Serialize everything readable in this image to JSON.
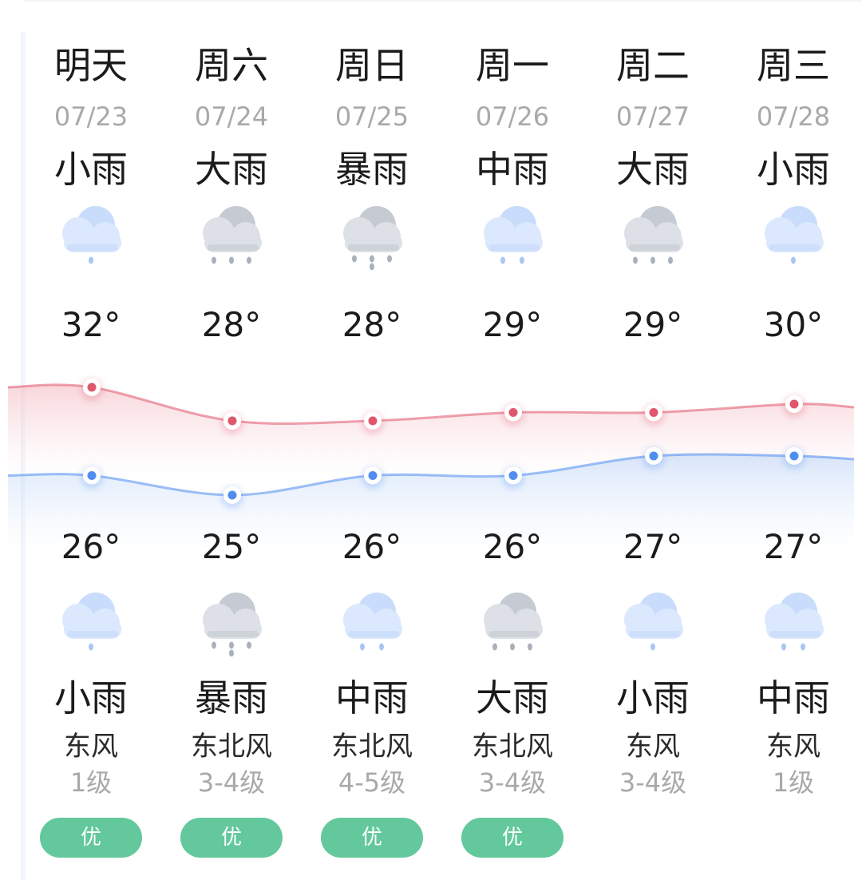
{
  "forecast": {
    "days": [
      {
        "name": "明天",
        "date": "07/23",
        "day_condition": "小雨",
        "day_icon": "cloud-light-rain-icon",
        "high": "32°",
        "low": "26°",
        "night_condition": "小雨",
        "night_icon": "cloud-light-rain-icon",
        "wind_dir": "东风",
        "wind_level": "1级",
        "aqi": "优"
      },
      {
        "name": "周六",
        "date": "07/24",
        "day_condition": "大雨",
        "day_icon": "cloud-heavy-rain-icon",
        "high": "28°",
        "low": "25°",
        "night_condition": "暴雨",
        "night_icon": "cloud-rainstorm-icon",
        "wind_dir": "东北风",
        "wind_level": "3-4级",
        "aqi": "优"
      },
      {
        "name": "周日",
        "date": "07/25",
        "day_condition": "暴雨",
        "day_icon": "cloud-rainstorm-icon",
        "high": "28°",
        "low": "26°",
        "night_condition": "中雨",
        "night_icon": "cloud-moderate-rain-icon",
        "wind_dir": "东北风",
        "wind_level": "4-5级",
        "aqi": "优"
      },
      {
        "name": "周一",
        "date": "07/26",
        "day_condition": "中雨",
        "day_icon": "cloud-moderate-rain-icon",
        "high": "29°",
        "low": "26°",
        "night_condition": "大雨",
        "night_icon": "cloud-heavy-rain-icon",
        "wind_dir": "东北风",
        "wind_level": "3-4级",
        "aqi": "优"
      },
      {
        "name": "周二",
        "date": "07/27",
        "day_condition": "大雨",
        "day_icon": "cloud-heavy-rain-icon",
        "high": "29°",
        "low": "27°",
        "night_condition": "小雨",
        "night_icon": "cloud-light-rain-icon",
        "wind_dir": "东风",
        "wind_level": "3-4级",
        "aqi": ""
      },
      {
        "name": "周三",
        "date": "07/28",
        "day_condition": "小雨",
        "day_icon": "cloud-light-rain-icon",
        "high": "30°",
        "low": "27°",
        "night_condition": "中雨",
        "night_icon": "cloud-moderate-rain-icon",
        "wind_dir": "东风",
        "wind_level": "1级",
        "aqi": ""
      }
    ]
  },
  "chart_data": {
    "type": "line",
    "categories": [
      "07/23",
      "07/24",
      "07/25",
      "07/26",
      "07/27",
      "07/28"
    ],
    "series": [
      {
        "values": [
          32,
          28,
          28,
          29,
          29,
          30
        ],
        "color": "#e0566c"
      },
      {
        "values": [
          26,
          25,
          26,
          26,
          27,
          27
        ],
        "color": "#4f8df0"
      }
    ]
  },
  "colors": {
    "aqi_good": "#63c89c",
    "high_line": "#e0566c",
    "low_line": "#4f8df0"
  }
}
